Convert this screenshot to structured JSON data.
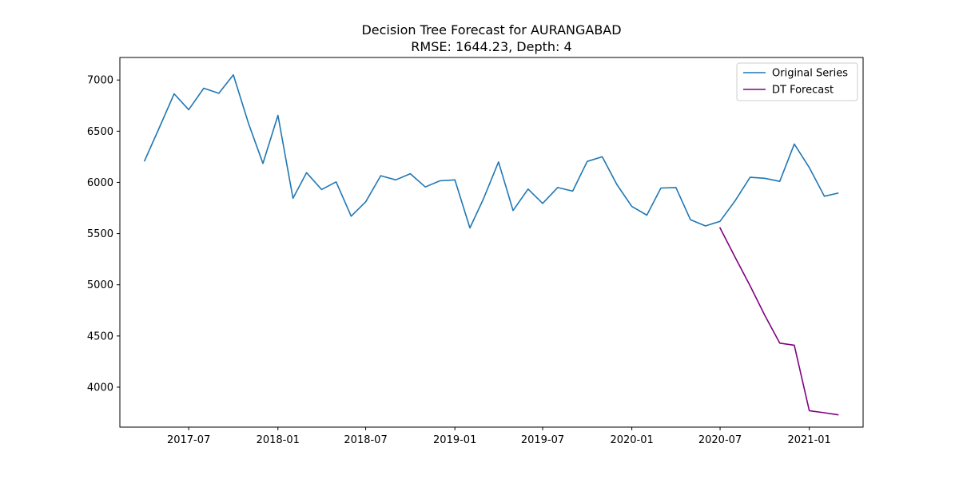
{
  "chart_data": {
    "type": "line",
    "title": "Decision Tree Forecast for AURANGABAD",
    "subtitle": "RMSE: 1644.23, Depth: 4",
    "xlabel": "",
    "ylabel": "",
    "xlim": [
      "2017-02-09",
      "2021-04-22"
    ],
    "ylim": [
      3610,
      7220
    ],
    "x_ticks": [
      "2017-07-01",
      "2018-01-01",
      "2018-07-01",
      "2019-01-01",
      "2019-07-01",
      "2020-01-01",
      "2020-07-01",
      "2021-01-01"
    ],
    "x_tick_labels": [
      "2017-07",
      "2018-01",
      "2018-07",
      "2019-01",
      "2019-07",
      "2020-01",
      "2020-07",
      "2021-01"
    ],
    "y_ticks": [
      4000,
      4500,
      5000,
      5500,
      6000,
      6500,
      7000
    ],
    "y_tick_labels": [
      "4000",
      "4500",
      "5000",
      "5500",
      "6000",
      "6500",
      "7000"
    ],
    "grid": false,
    "legend_position": "top-right",
    "series": [
      {
        "name": "Original Series",
        "color": "#1f77b4",
        "x": [
          "2017-04-01",
          "2017-05-01",
          "2017-06-01",
          "2017-07-01",
          "2017-08-01",
          "2017-09-01",
          "2017-10-01",
          "2017-11-01",
          "2017-12-01",
          "2018-01-01",
          "2018-02-01",
          "2018-03-01",
          "2018-04-01",
          "2018-05-01",
          "2018-06-01",
          "2018-07-01",
          "2018-08-01",
          "2018-09-01",
          "2018-10-01",
          "2018-11-01",
          "2018-12-01",
          "2019-01-01",
          "2019-02-01",
          "2019-03-01",
          "2019-04-01",
          "2019-05-01",
          "2019-06-01",
          "2019-07-01",
          "2019-08-01",
          "2019-09-01",
          "2019-10-01",
          "2019-11-01",
          "2019-12-01",
          "2020-01-01",
          "2020-02-01",
          "2020-03-01",
          "2020-04-01",
          "2020-05-01",
          "2020-06-01",
          "2020-07-01",
          "2020-08-01",
          "2020-09-01",
          "2020-10-01",
          "2020-11-01",
          "2020-12-01",
          "2021-01-01",
          "2021-02-01",
          "2021-03-01"
        ],
        "values": [
          6210,
          6530,
          6865,
          6710,
          6920,
          6870,
          7050,
          6580,
          6185,
          6655,
          5845,
          6095,
          5930,
          6005,
          5670,
          5810,
          6065,
          6025,
          6085,
          5955,
          6015,
          6025,
          5555,
          5840,
          6200,
          5725,
          5935,
          5795,
          5950,
          5915,
          6205,
          6250,
          5980,
          5765,
          5680,
          5945,
          5950,
          5635,
          5575,
          5620,
          5820,
          6050,
          6040,
          6010,
          6375,
          6145,
          5865,
          5895
        ]
      },
      {
        "name": "DT Forecast",
        "color": "#800080",
        "x": [
          "2020-07-01",
          "2020-08-01",
          "2020-09-01",
          "2020-10-01",
          "2020-11-01",
          "2020-12-01",
          "2021-01-01",
          "2021-02-01",
          "2021-03-01"
        ],
        "values": [
          5555,
          5270,
          4990,
          4705,
          4430,
          4410,
          3770,
          3750,
          3730
        ]
      }
    ]
  }
}
